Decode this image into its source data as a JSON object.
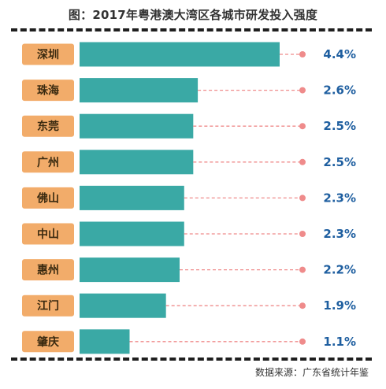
{
  "chart_data": {
    "type": "bar",
    "orientation": "horizontal",
    "title": "图：2017年粤港澳大湾区各城市研发投入强度",
    "categories": [
      "深圳",
      "珠海",
      "东莞",
      "广州",
      "佛山",
      "中山",
      "惠州",
      "江门",
      "肇庆"
    ],
    "values": [
      4.4,
      2.6,
      2.5,
      2.5,
      2.3,
      2.3,
      2.2,
      1.9,
      1.1
    ],
    "value_labels": [
      "4.4%",
      "2.6%",
      "2.5%",
      "2.5%",
      "2.3%",
      "2.3%",
      "2.2%",
      "1.9%",
      "1.1%"
    ],
    "xlim": [
      0,
      4.4
    ],
    "grid": false,
    "colors": {
      "bar": "#3aa9a5",
      "label_box": "#f2ac6a",
      "leader_line": "#ef8b8b",
      "value_text": "#1f5fa0"
    }
  },
  "footer": {
    "source": "数据来源：广东省统计年鉴"
  }
}
